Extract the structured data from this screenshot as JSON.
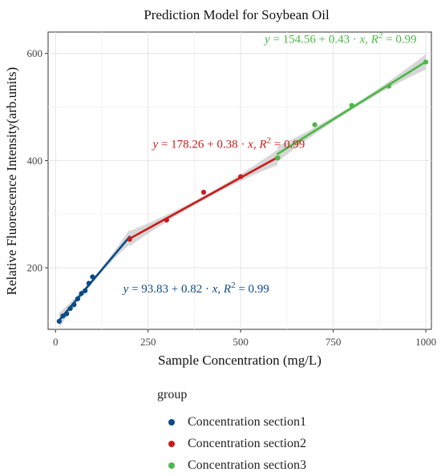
{
  "chart_data": {
    "type": "scatter",
    "title": "Prediction Model for Soybean Oil",
    "xlabel": "Sample Concentration (mg/L)",
    "ylabel": "Relative Fluorescence Intensity(arb.units)",
    "xlim": [
      -20,
      1015
    ],
    "ylim": [
      85,
      640
    ],
    "x_ticks": [
      0,
      250,
      500,
      750,
      1000
    ],
    "y_ticks": [
      200,
      400,
      600
    ],
    "grid": true,
    "legend_title": "group",
    "legend_position": "bottom",
    "series": [
      {
        "name": "Concentration section1",
        "color": "#0a4a86",
        "x": [
          10,
          20,
          30,
          40,
          50,
          60,
          70,
          80,
          90,
          100
        ],
        "y": [
          100,
          110,
          114,
          124,
          131,
          142,
          152,
          157,
          171,
          183
        ],
        "fit": {
          "intercept": 93.83,
          "slope": 0.82,
          "x_range": [
            10,
            200
          ]
        },
        "equation": {
          "lhs": "y",
          "eq": " = 93.83 + 0.82 · ",
          "var": "x",
          "sep": ",   ",
          "r": "R",
          "sup": "2",
          "rhs": " = 0.99",
          "x": 380,
          "y": 154
        }
      },
      {
        "name": "Concentration section2",
        "color": "#cc1a1a",
        "x": [
          200,
          300,
          400,
          500,
          600
        ],
        "y": [
          253,
          289,
          341,
          370,
          405
        ],
        "fit": {
          "intercept": 178.26,
          "slope": 0.38,
          "x_range": [
            200,
            600
          ]
        },
        "equation": {
          "lhs": "y",
          "eq": " = 178.26 + 0.38 · ",
          "var": "x",
          "sep": ",   ",
          "r": "R",
          "sup": "2",
          "rhs": " = 0.99",
          "x": 468,
          "y": 424
        }
      },
      {
        "name": "Concentration section3",
        "color": "#4cb848",
        "x": [
          600,
          700,
          800,
          900,
          1000
        ],
        "y": [
          405,
          467,
          503,
          539,
          584
        ],
        "fit": {
          "intercept": 154.56,
          "slope": 0.43,
          "x_range": [
            600,
            1000
          ]
        },
        "equation": {
          "lhs": "y",
          "eq": " = 154.56 + 0.43 · ",
          "var": "x",
          "sep": ",   ",
          "r": "R",
          "sup": "2",
          "rhs": " = 0.99",
          "x": 770,
          "y": 620
        }
      }
    ]
  }
}
